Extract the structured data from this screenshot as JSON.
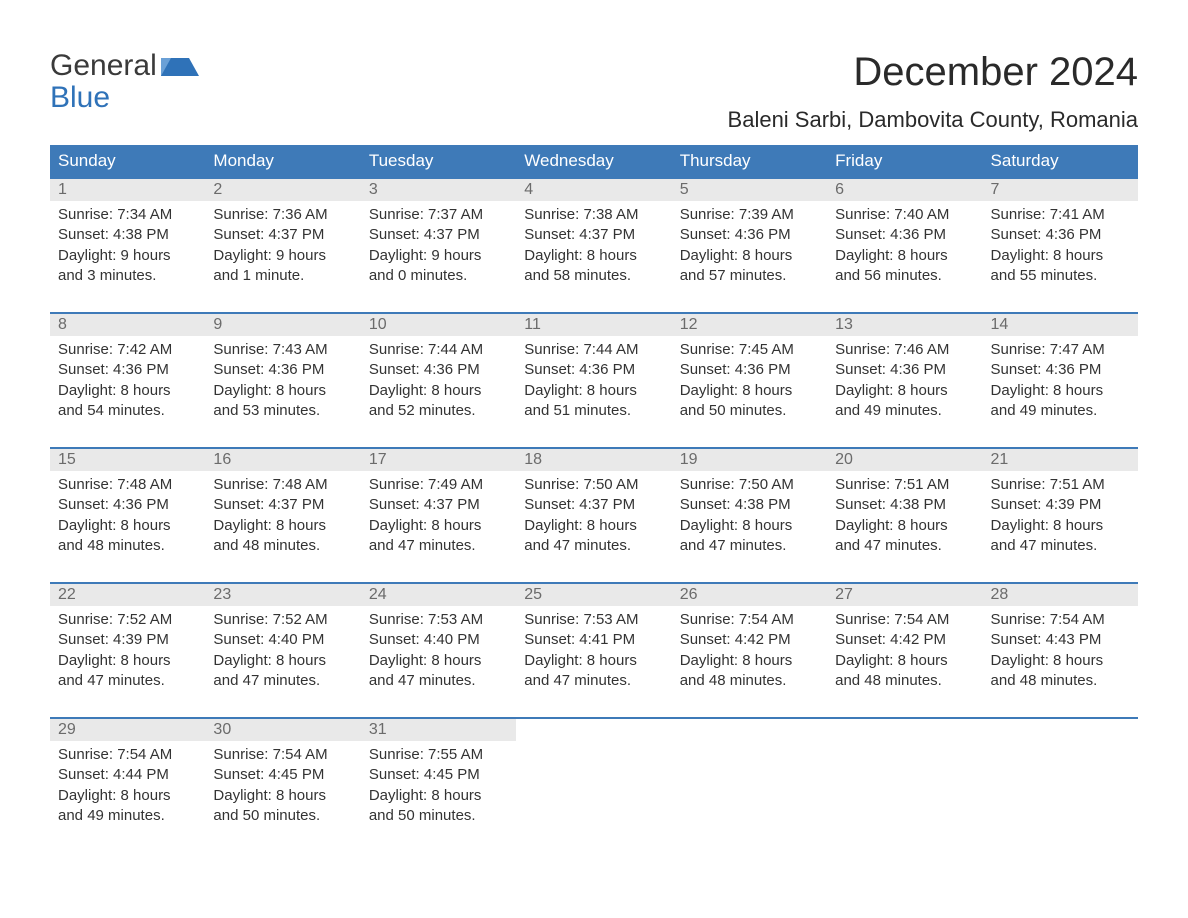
{
  "logo": {
    "text_top": "General",
    "text_bottom": "Blue",
    "shape_color": "#2f72b8"
  },
  "title": "December 2024",
  "location": "Baleni Sarbi, Dambovita County, Romania",
  "colors": {
    "header_bg": "#3e7ab8",
    "header_text": "#ffffff",
    "row_accent": "#3e7ab8",
    "daynum_bg": "#e9e9e9",
    "daynum_text": "#6b6b6b",
    "body_text": "#333333",
    "logo_blue": "#2f72b8"
  },
  "fonts": {
    "month_title_size": 40,
    "location_size": 22,
    "weekday_size": 17,
    "daynum_size": 16,
    "cell_size": 15
  },
  "weekdays": [
    "Sunday",
    "Monday",
    "Tuesday",
    "Wednesday",
    "Thursday",
    "Friday",
    "Saturday"
  ],
  "days": [
    {
      "num": "1",
      "sunrise": "7:34 AM",
      "sunset": "4:38 PM",
      "daylight_line1": "Daylight: 9 hours",
      "daylight_line2": "and 3 minutes."
    },
    {
      "num": "2",
      "sunrise": "7:36 AM",
      "sunset": "4:37 PM",
      "daylight_line1": "Daylight: 9 hours",
      "daylight_line2": "and 1 minute."
    },
    {
      "num": "3",
      "sunrise": "7:37 AM",
      "sunset": "4:37 PM",
      "daylight_line1": "Daylight: 9 hours",
      "daylight_line2": "and 0 minutes."
    },
    {
      "num": "4",
      "sunrise": "7:38 AM",
      "sunset": "4:37 PM",
      "daylight_line1": "Daylight: 8 hours",
      "daylight_line2": "and 58 minutes."
    },
    {
      "num": "5",
      "sunrise": "7:39 AM",
      "sunset": "4:36 PM",
      "daylight_line1": "Daylight: 8 hours",
      "daylight_line2": "and 57 minutes."
    },
    {
      "num": "6",
      "sunrise": "7:40 AM",
      "sunset": "4:36 PM",
      "daylight_line1": "Daylight: 8 hours",
      "daylight_line2": "and 56 minutes."
    },
    {
      "num": "7",
      "sunrise": "7:41 AM",
      "sunset": "4:36 PM",
      "daylight_line1": "Daylight: 8 hours",
      "daylight_line2": "and 55 minutes."
    },
    {
      "num": "8",
      "sunrise": "7:42 AM",
      "sunset": "4:36 PM",
      "daylight_line1": "Daylight: 8 hours",
      "daylight_line2": "and 54 minutes."
    },
    {
      "num": "9",
      "sunrise": "7:43 AM",
      "sunset": "4:36 PM",
      "daylight_line1": "Daylight: 8 hours",
      "daylight_line2": "and 53 minutes."
    },
    {
      "num": "10",
      "sunrise": "7:44 AM",
      "sunset": "4:36 PM",
      "daylight_line1": "Daylight: 8 hours",
      "daylight_line2": "and 52 minutes."
    },
    {
      "num": "11",
      "sunrise": "7:44 AM",
      "sunset": "4:36 PM",
      "daylight_line1": "Daylight: 8 hours",
      "daylight_line2": "and 51 minutes."
    },
    {
      "num": "12",
      "sunrise": "7:45 AM",
      "sunset": "4:36 PM",
      "daylight_line1": "Daylight: 8 hours",
      "daylight_line2": "and 50 minutes."
    },
    {
      "num": "13",
      "sunrise": "7:46 AM",
      "sunset": "4:36 PM",
      "daylight_line1": "Daylight: 8 hours",
      "daylight_line2": "and 49 minutes."
    },
    {
      "num": "14",
      "sunrise": "7:47 AM",
      "sunset": "4:36 PM",
      "daylight_line1": "Daylight: 8 hours",
      "daylight_line2": "and 49 minutes."
    },
    {
      "num": "15",
      "sunrise": "7:48 AM",
      "sunset": "4:36 PM",
      "daylight_line1": "Daylight: 8 hours",
      "daylight_line2": "and 48 minutes."
    },
    {
      "num": "16",
      "sunrise": "7:48 AM",
      "sunset": "4:37 PM",
      "daylight_line1": "Daylight: 8 hours",
      "daylight_line2": "and 48 minutes."
    },
    {
      "num": "17",
      "sunrise": "7:49 AM",
      "sunset": "4:37 PM",
      "daylight_line1": "Daylight: 8 hours",
      "daylight_line2": "and 47 minutes."
    },
    {
      "num": "18",
      "sunrise": "7:50 AM",
      "sunset": "4:37 PM",
      "daylight_line1": "Daylight: 8 hours",
      "daylight_line2": "and 47 minutes."
    },
    {
      "num": "19",
      "sunrise": "7:50 AM",
      "sunset": "4:38 PM",
      "daylight_line1": "Daylight: 8 hours",
      "daylight_line2": "and 47 minutes."
    },
    {
      "num": "20",
      "sunrise": "7:51 AM",
      "sunset": "4:38 PM",
      "daylight_line1": "Daylight: 8 hours",
      "daylight_line2": "and 47 minutes."
    },
    {
      "num": "21",
      "sunrise": "7:51 AM",
      "sunset": "4:39 PM",
      "daylight_line1": "Daylight: 8 hours",
      "daylight_line2": "and 47 minutes."
    },
    {
      "num": "22",
      "sunrise": "7:52 AM",
      "sunset": "4:39 PM",
      "daylight_line1": "Daylight: 8 hours",
      "daylight_line2": "and 47 minutes."
    },
    {
      "num": "23",
      "sunrise": "7:52 AM",
      "sunset": "4:40 PM",
      "daylight_line1": "Daylight: 8 hours",
      "daylight_line2": "and 47 minutes."
    },
    {
      "num": "24",
      "sunrise": "7:53 AM",
      "sunset": "4:40 PM",
      "daylight_line1": "Daylight: 8 hours",
      "daylight_line2": "and 47 minutes."
    },
    {
      "num": "25",
      "sunrise": "7:53 AM",
      "sunset": "4:41 PM",
      "daylight_line1": "Daylight: 8 hours",
      "daylight_line2": "and 47 minutes."
    },
    {
      "num": "26",
      "sunrise": "7:54 AM",
      "sunset": "4:42 PM",
      "daylight_line1": "Daylight: 8 hours",
      "daylight_line2": "and 48 minutes."
    },
    {
      "num": "27",
      "sunrise": "7:54 AM",
      "sunset": "4:42 PM",
      "daylight_line1": "Daylight: 8 hours",
      "daylight_line2": "and 48 minutes."
    },
    {
      "num": "28",
      "sunrise": "7:54 AM",
      "sunset": "4:43 PM",
      "daylight_line1": "Daylight: 8 hours",
      "daylight_line2": "and 48 minutes."
    },
    {
      "num": "29",
      "sunrise": "7:54 AM",
      "sunset": "4:44 PM",
      "daylight_line1": "Daylight: 8 hours",
      "daylight_line2": "and 49 minutes."
    },
    {
      "num": "30",
      "sunrise": "7:54 AM",
      "sunset": "4:45 PM",
      "daylight_line1": "Daylight: 8 hours",
      "daylight_line2": "and 50 minutes."
    },
    {
      "num": "31",
      "sunrise": "7:55 AM",
      "sunset": "4:45 PM",
      "daylight_line1": "Daylight: 8 hours",
      "daylight_line2": "and 50 minutes."
    }
  ],
  "labels": {
    "sunrise_prefix": "Sunrise: ",
    "sunset_prefix": "Sunset: "
  },
  "grid": {
    "start_offset": 0,
    "total_cells": 35
  }
}
